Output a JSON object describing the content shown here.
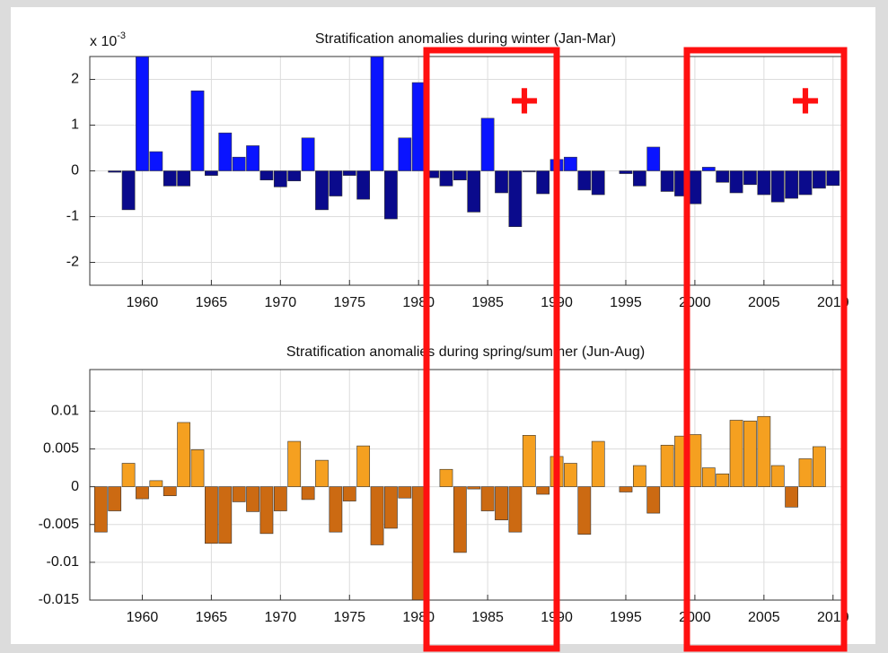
{
  "chart_data": [
    {
      "type": "bar",
      "title": "Stratification anomalies during winter (Jan-Mar)",
      "y_multiplier": {
        "base": "x 10",
        "exponent": "-3"
      },
      "x": [
        1958,
        1959,
        1960,
        1961,
        1962,
        1963,
        1964,
        1965,
        1966,
        1967,
        1968,
        1969,
        1970,
        1971,
        1972,
        1973,
        1974,
        1975,
        1976,
        1977,
        1978,
        1979,
        1980,
        1981,
        1982,
        1983,
        1984,
        1985,
        1986,
        1987,
        1988,
        1989,
        1990,
        1991,
        1992,
        1993,
        1994,
        1995,
        1996,
        1997,
        1998,
        1999,
        2000,
        2001,
        2002,
        2003,
        2004,
        2005,
        2006,
        2007,
        2008,
        2009,
        2010
      ],
      "values": [
        -0.03,
        -0.85,
        2.5,
        0.42,
        -0.33,
        -0.33,
        1.75,
        -0.1,
        0.83,
        0.3,
        0.55,
        -0.2,
        -0.35,
        -0.22,
        0.72,
        -0.85,
        -0.55,
        -0.1,
        -0.62,
        2.5,
        -1.05,
        0.72,
        1.93,
        -0.15,
        -0.33,
        -0.2,
        -0.9,
        1.15,
        -0.48,
        -1.22,
        -0.02,
        -0.5,
        0.25,
        0.3,
        -0.42,
        -0.52,
        0,
        -0.06,
        -0.33,
        0.52,
        -0.45,
        -0.55,
        -0.72,
        0.08,
        -0.25,
        -0.48,
        -0.3,
        -0.52,
        -0.68,
        -0.6,
        -0.52,
        -0.38,
        -0.32
      ],
      "color": "#0a14ff",
      "negative_color": "#0a0a8c",
      "xlim": [
        1956.2,
        2010.6
      ],
      "xticks": [
        1960,
        1965,
        1970,
        1975,
        1980,
        1985,
        1990,
        1995,
        2000,
        2005,
        2010
      ],
      "ylim": [
        -2.5,
        2.5
      ],
      "yticks": [
        -2,
        -1,
        0,
        1,
        2
      ],
      "grid": true
    },
    {
      "type": "bar",
      "title": "Stratification anomalies during spring/summer (Jun-Aug)",
      "x": [
        1957,
        1958,
        1959,
        1960,
        1961,
        1962,
        1963,
        1964,
        1965,
        1966,
        1967,
        1968,
        1969,
        1970,
        1971,
        1972,
        1973,
        1974,
        1975,
        1976,
        1977,
        1978,
        1979,
        1980,
        1981,
        1982,
        1983,
        1984,
        1985,
        1986,
        1987,
        1988,
        1989,
        1990,
        1991,
        1992,
        1993,
        1994,
        1995,
        1996,
        1997,
        1998,
        1999,
        2000,
        2001,
        2002,
        2003,
        2004,
        2005,
        2006,
        2007,
        2008,
        2009
      ],
      "values": [
        -0.006,
        -0.0032,
        0.0031,
        -0.0016,
        0.0008,
        -0.0012,
        0.0085,
        0.0049,
        -0.0075,
        -0.0075,
        -0.002,
        -0.0033,
        -0.0062,
        -0.0032,
        0.006,
        -0.0017,
        0.0035,
        -0.006,
        -0.0019,
        0.0054,
        -0.0077,
        -0.0055,
        -0.0015,
        -0.015,
        0,
        0.0023,
        -0.0087,
        -0.0003,
        -0.0032,
        -0.0044,
        -0.006,
        0.0068,
        -0.001,
        0.004,
        0.0031,
        -0.0063,
        0.006,
        0,
        -0.0007,
        0.0028,
        -0.0035,
        0.0055,
        0.0067,
        0.0069,
        0.0025,
        0.0017,
        0.0088,
        0.0087,
        0.0093,
        0.0028,
        -0.0027,
        0.0037,
        0.0053
      ],
      "color": "#f5a020",
      "negative_color": "#cc6a12",
      "xlim": [
        1956.2,
        2010.6
      ],
      "xticks": [
        1960,
        1965,
        1970,
        1975,
        1980,
        1985,
        1990,
        1995,
        2000,
        2005,
        2010
      ],
      "ylim": [
        -0.015,
        0.0155
      ],
      "yticks": [
        -0.015,
        -0.01,
        -0.005,
        0,
        0.005,
        0.01
      ],
      "grid": true
    }
  ],
  "overlay": {
    "marks": [
      "+",
      "+"
    ]
  }
}
